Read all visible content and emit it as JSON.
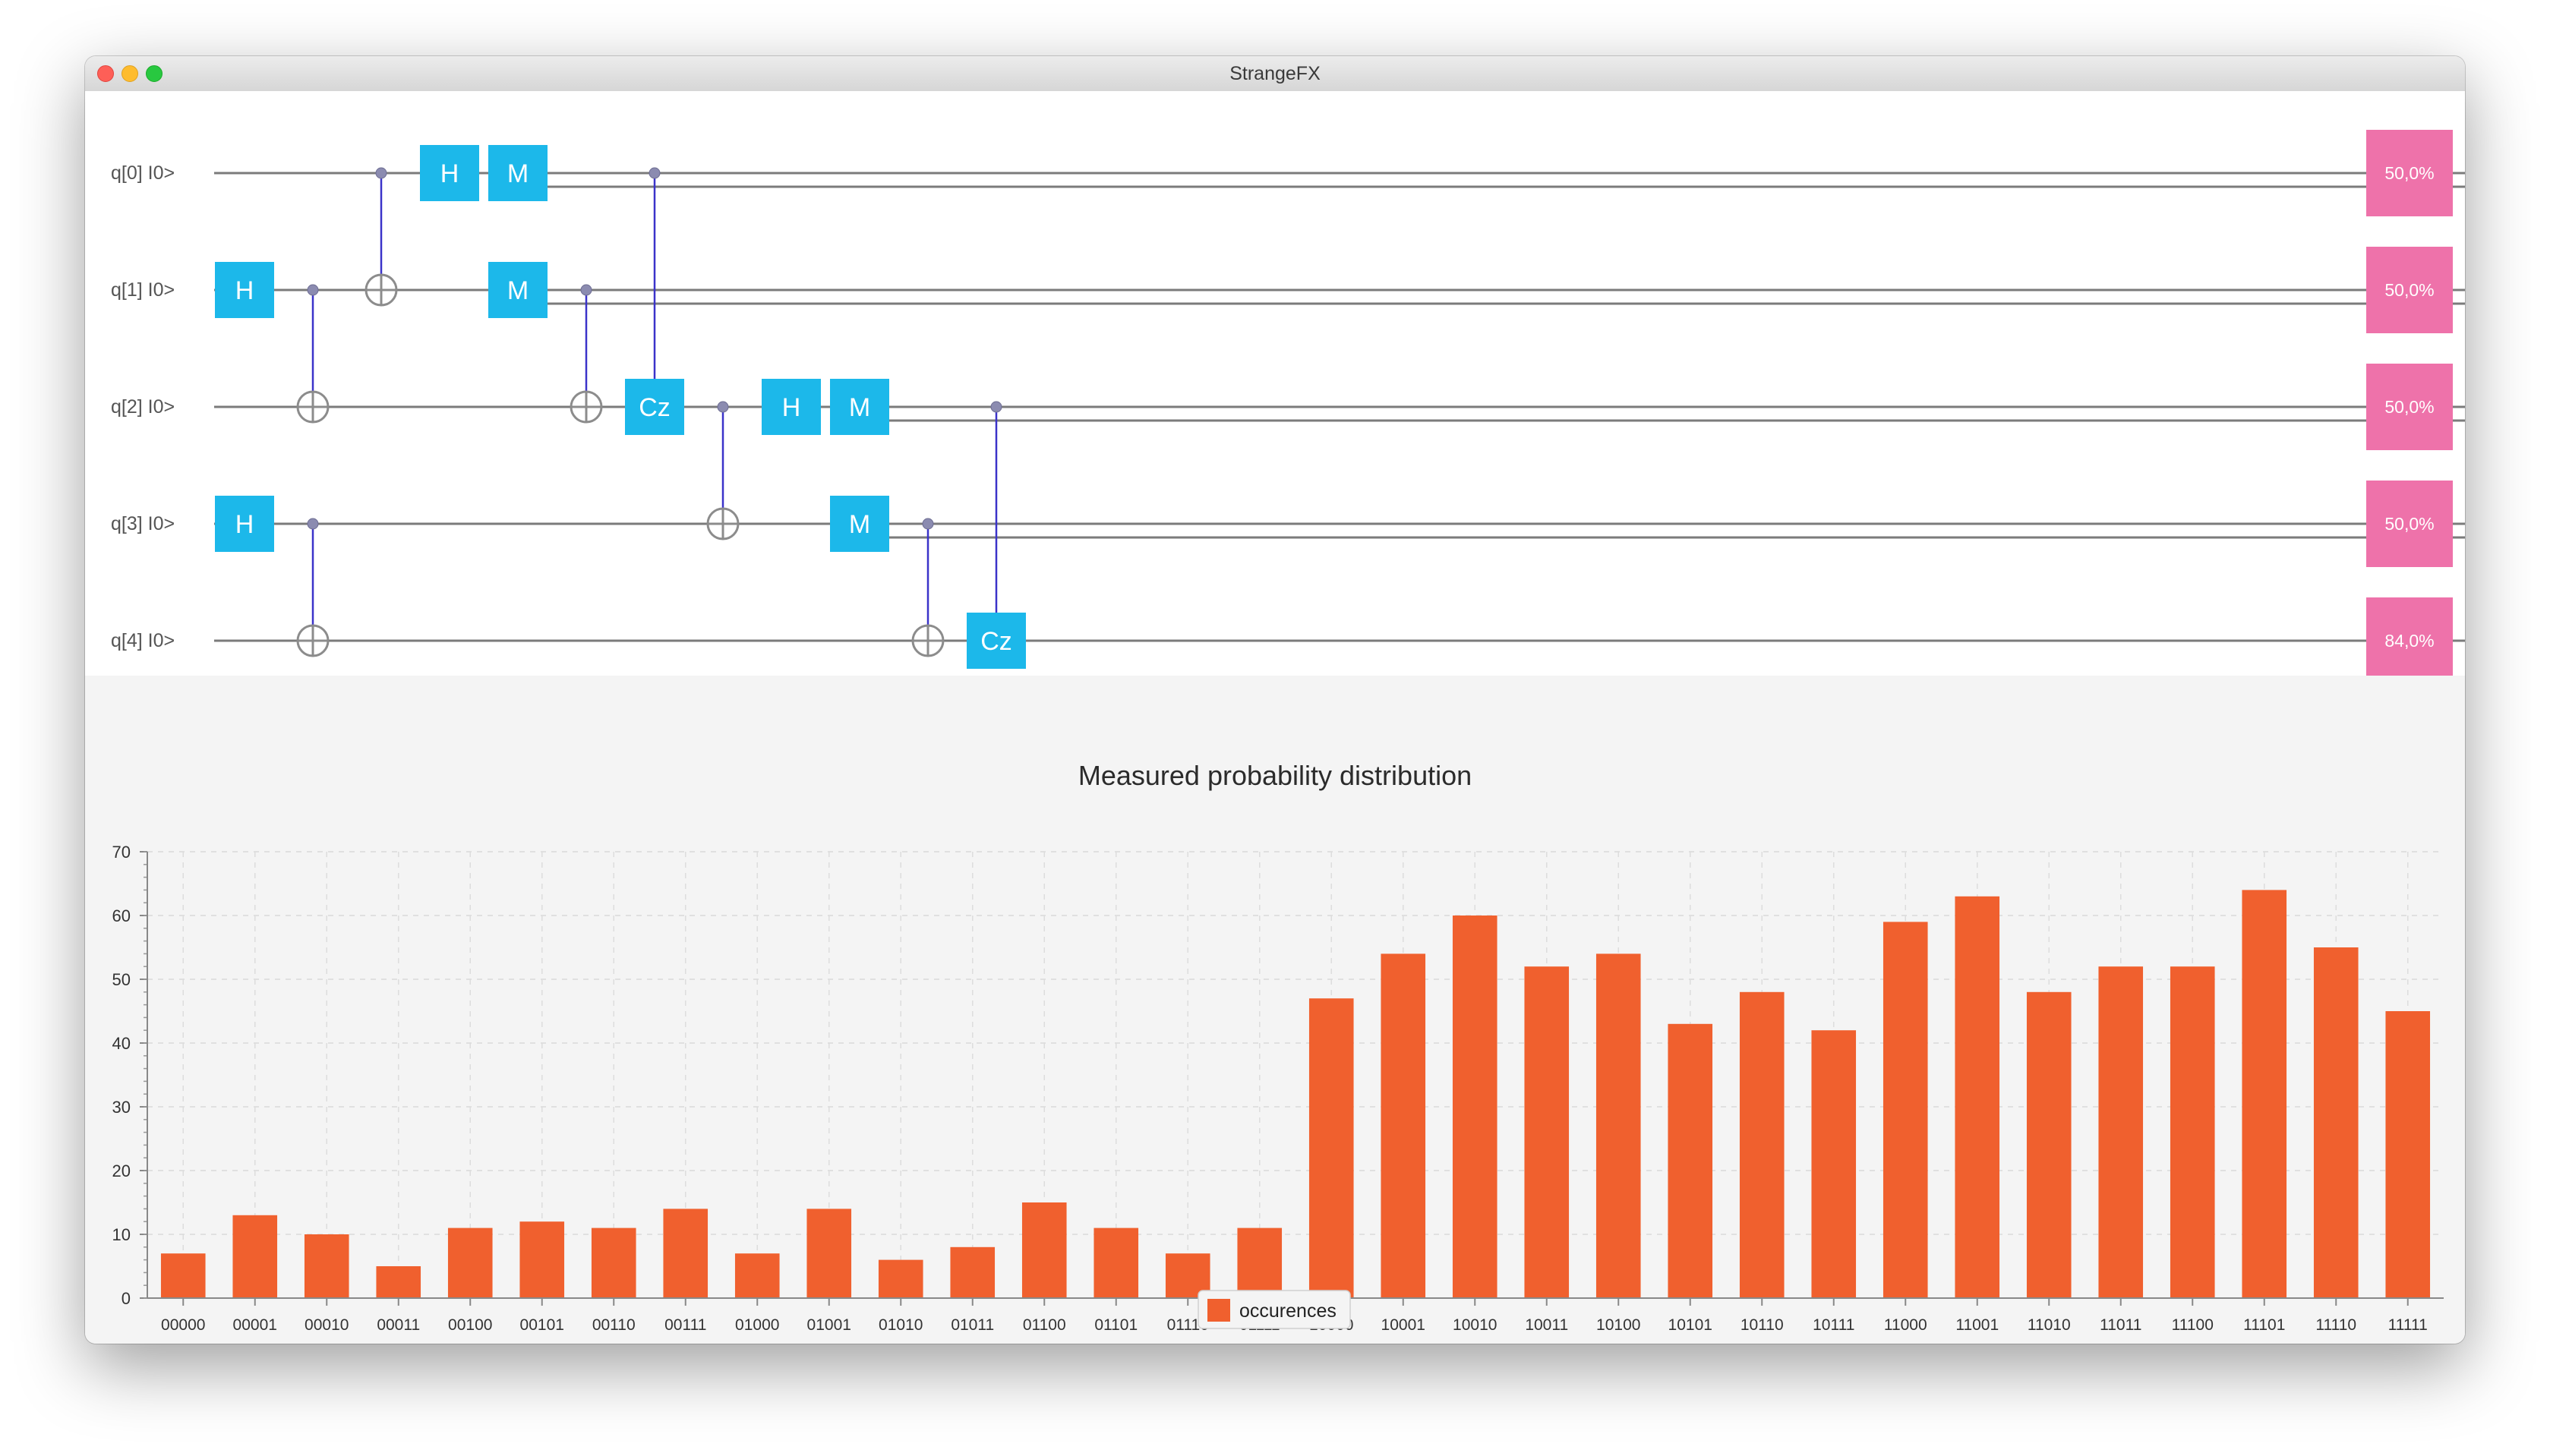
{
  "window": {
    "title": "StrangeFX"
  },
  "circuit": {
    "qubits": [
      {
        "label": "q[0] I0>",
        "probability": "50,0%"
      },
      {
        "label": "q[1] I0>",
        "probability": "50,0%"
      },
      {
        "label": "q[2] I0>",
        "probability": "50,0%"
      },
      {
        "label": "q[3] I0>",
        "probability": "50,0%"
      },
      {
        "label": "q[4] I0>",
        "probability": "84,0%"
      }
    ],
    "steps": [
      {
        "gates": [
          {
            "type": "H",
            "qubit": 1
          },
          {
            "type": "H",
            "qubit": 3
          }
        ]
      },
      {
        "gates": [
          {
            "type": "CNOT",
            "control": 1,
            "target": 2
          },
          {
            "type": "CNOT",
            "control": 3,
            "target": 4
          }
        ]
      },
      {
        "gates": [
          {
            "type": "CNOT",
            "control": 0,
            "target": 1
          }
        ]
      },
      {
        "gates": [
          {
            "type": "H",
            "qubit": 0
          }
        ]
      },
      {
        "gates": [
          {
            "type": "M",
            "qubit": 0
          },
          {
            "type": "M",
            "qubit": 1
          }
        ]
      },
      {
        "gates": [
          {
            "type": "CNOT",
            "control": 1,
            "target": 2
          }
        ]
      },
      {
        "gates": [
          {
            "type": "Cz",
            "control": 0,
            "target": 2
          }
        ]
      },
      {
        "gates": [
          {
            "type": "CNOT",
            "control": 2,
            "target": 3
          }
        ]
      },
      {
        "gates": [
          {
            "type": "H",
            "qubit": 2
          }
        ]
      },
      {
        "gates": [
          {
            "type": "M",
            "qubit": 2
          },
          {
            "type": "M",
            "qubit": 3
          }
        ]
      },
      {
        "gates": [
          {
            "type": "CNOT",
            "control": 3,
            "target": 4
          }
        ]
      },
      {
        "gates": [
          {
            "type": "Cz",
            "control": 2,
            "target": 4
          }
        ]
      }
    ],
    "colors": {
      "gate": "#1cb8ea",
      "gate_text": "#ffffff",
      "probability": "#ee72aa",
      "wire": "#7b7b7b",
      "control_line": "#3b33c9"
    }
  },
  "chart_data": {
    "type": "bar",
    "title": "Measured probability distribution",
    "categories": [
      "00000",
      "00001",
      "00010",
      "00011",
      "00100",
      "00101",
      "00110",
      "00111",
      "01000",
      "01001",
      "01010",
      "01011",
      "01100",
      "01101",
      "01110",
      "01111",
      "10000",
      "10001",
      "10010",
      "10011",
      "10100",
      "10101",
      "10110",
      "10111",
      "11000",
      "11001",
      "11010",
      "11011",
      "11100",
      "11101",
      "11110",
      "11111"
    ],
    "series": [
      {
        "name": "occurences",
        "color": "#f0602e",
        "values": [
          7,
          13,
          10,
          5,
          11,
          12,
          11,
          14,
          7,
          14,
          6,
          8,
          15,
          11,
          7,
          11,
          47,
          54,
          60,
          52,
          54,
          43,
          48,
          42,
          59,
          63,
          48,
          52,
          52,
          64,
          55,
          45
        ]
      }
    ],
    "yticks": [
      "0",
      "10",
      "20",
      "30",
      "40",
      "50",
      "60",
      "70"
    ],
    "ylim": [
      0,
      70
    ],
    "grid": true,
    "legend_position": "bottom-center"
  }
}
